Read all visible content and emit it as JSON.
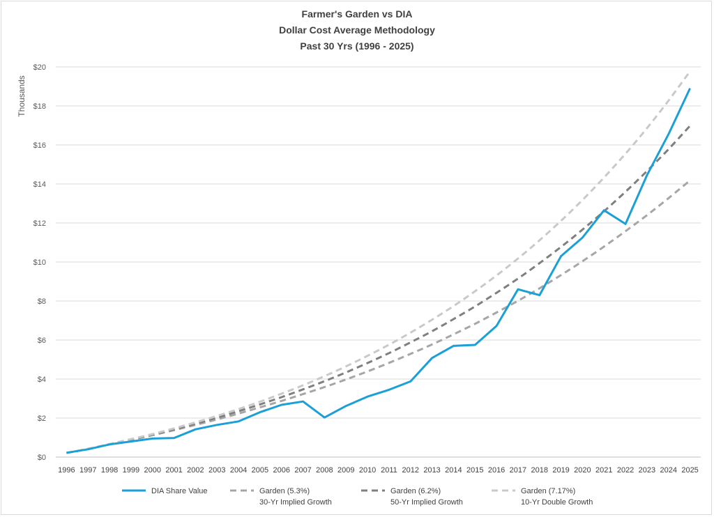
{
  "chart_data": {
    "type": "line",
    "title_lines": [
      "Farmer's Garden vs DIA",
      "Dollar Cost Average Methodology",
      "Past 30 Yrs (1996 -  2025)"
    ],
    "ylabel": "Thousands",
    "xlabel": "",
    "ylim": [
      0,
      20
    ],
    "y_ticks": [
      "$0",
      "$2",
      "$4",
      "$6",
      "$8",
      "$10",
      "$12",
      "$14",
      "$16",
      "$18",
      "$20"
    ],
    "grid": "horizontal",
    "legend_position": "bottom",
    "categories": [
      "1996",
      "1997",
      "1998",
      "1999",
      "2000",
      "2001",
      "2002",
      "2003",
      "2004",
      "2005",
      "2006",
      "2007",
      "2008",
      "2009",
      "2010",
      "2011",
      "2012",
      "2013",
      "2014",
      "2015",
      "2016",
      "2017",
      "2018",
      "2019",
      "2020",
      "2021",
      "2022",
      "2023",
      "2024",
      "2025"
    ],
    "series": [
      {
        "name": "DIA Share Value",
        "subname": "",
        "color": "#1a9fd6",
        "style": "solid",
        "values": [
          0.22,
          0.4,
          0.65,
          0.8,
          0.95,
          0.98,
          1.42,
          1.65,
          1.83,
          2.3,
          2.68,
          2.85,
          2.03,
          2.62,
          3.1,
          3.45,
          3.88,
          5.08,
          5.7,
          5.75,
          6.72,
          8.6,
          8.3,
          10.3,
          11.25,
          12.65,
          11.95,
          14.45,
          16.55,
          18.9
        ]
      },
      {
        "name": "Garden (5.3%)",
        "subname": "30-Yr Implied Growth",
        "color": "#a6a6a6",
        "style": "dashed",
        "values": [
          0.21,
          0.42,
          0.65,
          0.88,
          1.12,
          1.38,
          1.65,
          1.93,
          2.23,
          2.55,
          2.88,
          3.23,
          3.59,
          3.98,
          4.39,
          4.83,
          5.29,
          5.77,
          6.29,
          6.83,
          7.41,
          8.01,
          8.65,
          9.33,
          10.04,
          10.79,
          11.58,
          12.4,
          13.27,
          14.18
        ]
      },
      {
        "name": "Garden (6.2%)",
        "subname": "50-Yr Implied Growth",
        "color": "#7f7f7f",
        "style": "dashed",
        "values": [
          0.21,
          0.42,
          0.66,
          0.9,
          1.15,
          1.42,
          1.71,
          2.02,
          2.35,
          2.7,
          3.07,
          3.47,
          3.89,
          4.34,
          4.82,
          5.33,
          5.88,
          6.45,
          7.07,
          7.72,
          8.42,
          9.15,
          9.94,
          10.77,
          11.66,
          12.6,
          13.6,
          14.66,
          15.78,
          16.98
        ]
      },
      {
        "name": "Garden (7.17%)",
        "subname": "10-Yr Double Growth",
        "color": "#c9c9c9",
        "style": "dashed",
        "values": [
          0.21,
          0.43,
          0.67,
          0.92,
          1.18,
          1.47,
          1.78,
          2.11,
          2.46,
          2.84,
          3.25,
          3.68,
          4.15,
          4.65,
          5.19,
          5.76,
          6.38,
          7.04,
          7.74,
          8.5,
          9.31,
          10.18,
          11.11,
          12.11,
          13.18,
          14.33,
          15.55,
          16.86,
          18.27,
          19.77
        ]
      }
    ]
  }
}
